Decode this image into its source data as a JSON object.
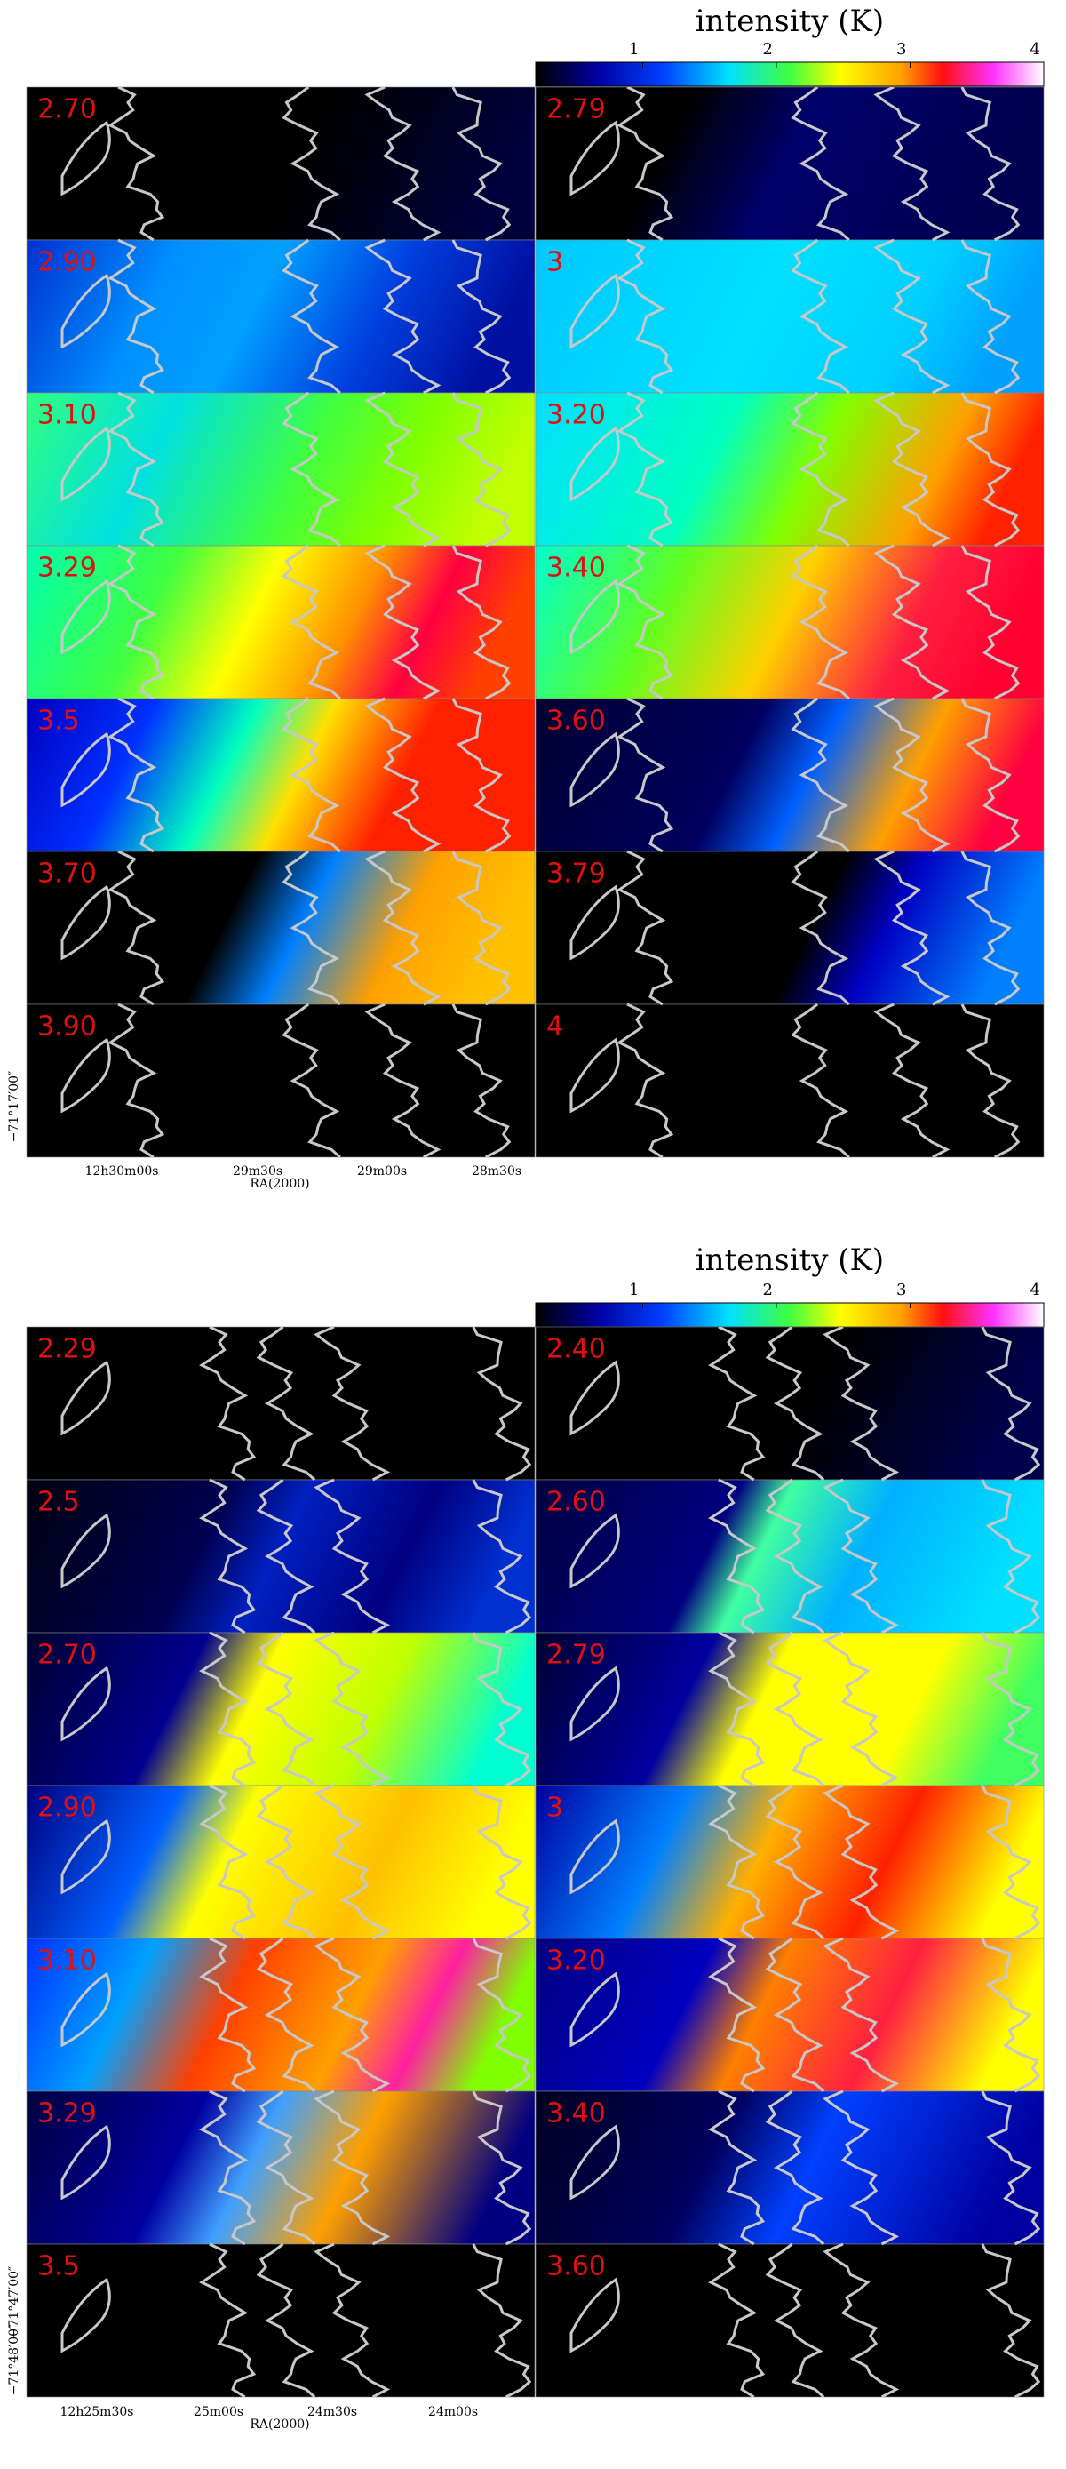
{
  "figures": [
    {
      "colorbar": {
        "title": "intensity (K)",
        "lim": [
          0.2,
          4
        ],
        "ticks": [
          1,
          2,
          3,
          4
        ]
      },
      "panels": [
        "2.70",
        "2.79",
        "2.90",
        "3",
        "3.10",
        "3.20",
        "3.29",
        "3.40",
        "3.5",
        "3.60",
        "3.70",
        "3.79",
        "3.90",
        "4"
      ],
      "ra_ticks": [
        "12h30m00s",
        "29m30s",
        "29m00s",
        "28m30s"
      ],
      "ra_label": "RA(2000)",
      "dec_ticks": [
        "−71°17′00″"
      ]
    },
    {
      "colorbar": {
        "title": "intensity (K)",
        "lim": [
          0.2,
          4
        ],
        "ticks": [
          1,
          2,
          3,
          4
        ]
      },
      "panels": [
        "2.29",
        "2.40",
        "2.5",
        "2.60",
        "2.70",
        "2.79",
        "2.90",
        "3",
        "3.10",
        "3.20",
        "3.29",
        "3.40",
        "3.5",
        "3.60"
      ],
      "ra_ticks": [
        "12h25m30s",
        "25m00s",
        "24m30s",
        "24m00s"
      ],
      "ra_label": "RA(2000)",
      "dec_ticks": [
        "−71°47′00″",
        "−71°48′00″"
      ]
    }
  ]
}
